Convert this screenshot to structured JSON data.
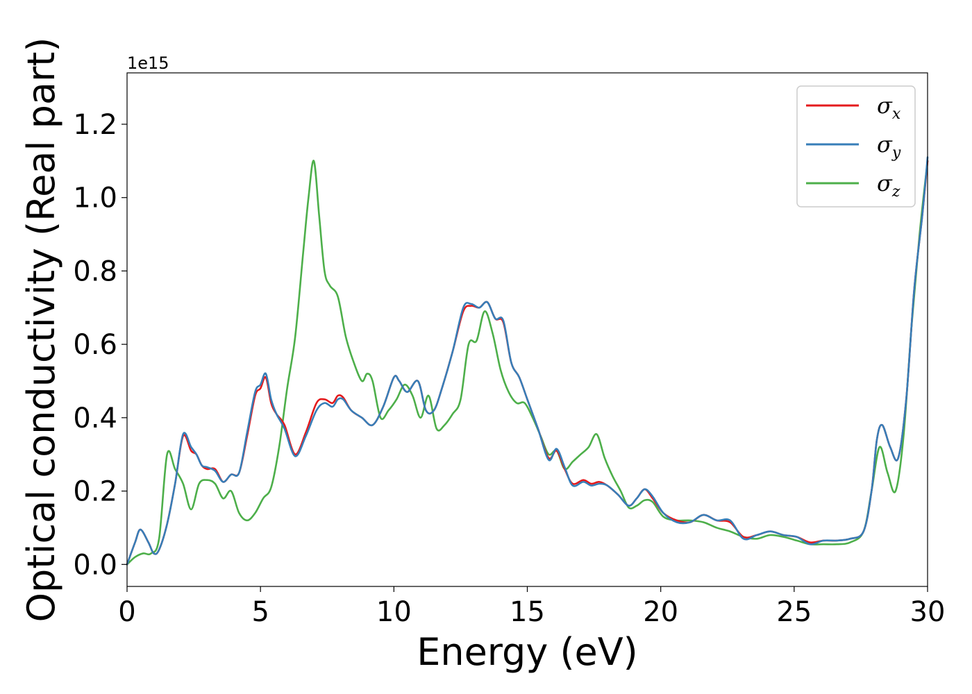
{
  "chart_data": {
    "type": "line",
    "title": "",
    "xlabel": "Energy (eV)",
    "ylabel": "Optical conductivity (Real part)",
    "y_offset_label": "1e15",
    "xlim": [
      0,
      30
    ],
    "ylim": [
      -0.06,
      1.34
    ],
    "y_scale_factor": 1000000000000000.0,
    "xticks": [
      0,
      5,
      10,
      15,
      20,
      25,
      30
    ],
    "yticks": [
      0.0,
      0.2,
      0.4,
      0.6,
      0.8,
      1.0,
      1.2
    ],
    "xtick_labels": [
      "0",
      "5",
      "10",
      "15",
      "20",
      "25",
      "30"
    ],
    "ytick_labels": [
      "0.0",
      "0.2",
      "0.4",
      "0.6",
      "0.8",
      "1.0",
      "1.2"
    ],
    "grid": false,
    "legend_position": "top-right",
    "series": [
      {
        "name": "σx",
        "name_base": "σ",
        "name_sub": "x",
        "color": "#e41a1c",
        "x": [
          0,
          0.3,
          0.5,
          0.8,
          1.0,
          1.2,
          1.5,
          1.8,
          2.1,
          2.4,
          2.6,
          2.8,
          3.0,
          3.3,
          3.6,
          3.9,
          4.2,
          4.5,
          4.8,
          5.0,
          5.2,
          5.4,
          5.6,
          5.9,
          6.3,
          6.7,
          7.1,
          7.4,
          7.7,
          7.9,
          8.1,
          8.4,
          8.8,
          9.2,
          9.6,
          10.0,
          10.2,
          10.5,
          10.9,
          11.2,
          11.5,
          11.8,
          12.2,
          12.6,
          12.9,
          13.2,
          13.5,
          13.8,
          14.1,
          14.4,
          14.7,
          15.0,
          15.4,
          15.8,
          16.1,
          16.4,
          16.7,
          17.1,
          17.4,
          17.7,
          18.0,
          18.4,
          18.8,
          19.1,
          19.4,
          19.7,
          20.1,
          20.6,
          21.1,
          21.6,
          22.1,
          22.6,
          23.1,
          23.6,
          24.1,
          24.6,
          25.1,
          25.6,
          26.1,
          26.6,
          27.1,
          27.6,
          27.9,
          28.1,
          28.3,
          28.6,
          28.9,
          29.2,
          29.5,
          29.8,
          30.0
        ],
        "values": [
          0,
          0.06,
          0.095,
          0.06,
          0.03,
          0.04,
          0.11,
          0.22,
          0.35,
          0.31,
          0.3,
          0.27,
          0.26,
          0.26,
          0.225,
          0.245,
          0.25,
          0.35,
          0.46,
          0.48,
          0.51,
          0.44,
          0.41,
          0.38,
          0.3,
          0.36,
          0.44,
          0.45,
          0.44,
          0.46,
          0.455,
          0.42,
          0.4,
          0.38,
          0.43,
          0.51,
          0.5,
          0.47,
          0.5,
          0.42,
          0.42,
          0.48,
          0.58,
          0.69,
          0.705,
          0.7,
          0.715,
          0.67,
          0.66,
          0.55,
          0.51,
          0.45,
          0.37,
          0.29,
          0.31,
          0.26,
          0.22,
          0.23,
          0.22,
          0.225,
          0.215,
          0.19,
          0.16,
          0.18,
          0.205,
          0.18,
          0.14,
          0.12,
          0.115,
          0.135,
          0.12,
          0.115,
          0.075,
          0.08,
          0.09,
          0.08,
          0.075,
          0.06,
          0.065,
          0.065,
          0.07,
          0.09,
          0.2,
          0.34,
          0.38,
          0.32,
          0.29,
          0.45,
          0.75,
          0.95,
          1.1
        ]
      },
      {
        "name": "σy",
        "name_base": "σ",
        "name_sub": "y",
        "color": "#377eb8",
        "x": [
          0,
          0.3,
          0.5,
          0.8,
          1.0,
          1.2,
          1.5,
          1.8,
          2.1,
          2.4,
          2.6,
          2.8,
          3.0,
          3.3,
          3.6,
          3.9,
          4.2,
          4.5,
          4.8,
          5.0,
          5.2,
          5.4,
          5.6,
          5.9,
          6.3,
          6.7,
          7.1,
          7.4,
          7.7,
          7.9,
          8.1,
          8.4,
          8.8,
          9.2,
          9.6,
          10.0,
          10.2,
          10.5,
          10.9,
          11.2,
          11.5,
          11.8,
          12.2,
          12.6,
          12.9,
          13.2,
          13.5,
          13.8,
          14.1,
          14.4,
          14.7,
          15.0,
          15.4,
          15.8,
          16.1,
          16.4,
          16.7,
          17.1,
          17.4,
          17.7,
          18.0,
          18.4,
          18.8,
          19.1,
          19.4,
          19.7,
          20.1,
          20.6,
          21.1,
          21.6,
          22.1,
          22.6,
          23.1,
          23.6,
          24.1,
          24.6,
          25.1,
          25.6,
          26.1,
          26.6,
          27.1,
          27.6,
          27.9,
          28.1,
          28.3,
          28.6,
          28.9,
          29.2,
          29.5,
          29.8,
          30.0
        ],
        "values": [
          0,
          0.06,
          0.095,
          0.06,
          0.03,
          0.04,
          0.11,
          0.22,
          0.355,
          0.32,
          0.3,
          0.27,
          0.265,
          0.255,
          0.225,
          0.245,
          0.25,
          0.36,
          0.47,
          0.49,
          0.52,
          0.45,
          0.41,
          0.37,
          0.295,
          0.35,
          0.42,
          0.44,
          0.43,
          0.45,
          0.45,
          0.42,
          0.4,
          0.38,
          0.43,
          0.51,
          0.5,
          0.47,
          0.5,
          0.42,
          0.42,
          0.48,
          0.58,
          0.7,
          0.71,
          0.7,
          0.715,
          0.67,
          0.665,
          0.55,
          0.51,
          0.45,
          0.37,
          0.285,
          0.315,
          0.265,
          0.215,
          0.225,
          0.215,
          0.22,
          0.215,
          0.19,
          0.16,
          0.18,
          0.205,
          0.185,
          0.14,
          0.115,
          0.115,
          0.135,
          0.12,
          0.12,
          0.07,
          0.08,
          0.09,
          0.08,
          0.075,
          0.055,
          0.065,
          0.065,
          0.07,
          0.09,
          0.2,
          0.34,
          0.38,
          0.32,
          0.29,
          0.45,
          0.75,
          0.95,
          1.11
        ]
      },
      {
        "name": "σz",
        "name_base": "σ",
        "name_sub": "z",
        "color": "#4daf4a",
        "x": [
          0,
          0.3,
          0.6,
          0.9,
          1.2,
          1.5,
          1.8,
          2.1,
          2.4,
          2.7,
          3.0,
          3.3,
          3.6,
          3.9,
          4.2,
          4.5,
          4.8,
          5.1,
          5.4,
          5.7,
          6.0,
          6.3,
          6.6,
          6.8,
          7.0,
          7.2,
          7.4,
          7.6,
          7.9,
          8.2,
          8.5,
          8.8,
          9.0,
          9.2,
          9.5,
          9.8,
          10.1,
          10.4,
          10.7,
          11.0,
          11.3,
          11.6,
          11.9,
          12.2,
          12.5,
          12.8,
          13.1,
          13.4,
          13.7,
          14.0,
          14.3,
          14.6,
          14.9,
          15.2,
          15.5,
          15.8,
          16.1,
          16.4,
          16.7,
          17.0,
          17.3,
          17.6,
          17.9,
          18.2,
          18.5,
          18.8,
          19.1,
          19.4,
          19.7,
          20.1,
          20.6,
          21.1,
          21.6,
          22.1,
          22.6,
          23.1,
          23.6,
          24.1,
          24.6,
          25.1,
          25.6,
          26.1,
          26.6,
          27.1,
          27.6,
          27.9,
          28.2,
          28.5,
          28.8,
          29.1,
          29.4,
          29.7,
          30.0
        ],
        "values": [
          0,
          0.02,
          0.03,
          0.03,
          0.07,
          0.3,
          0.26,
          0.22,
          0.15,
          0.22,
          0.23,
          0.22,
          0.18,
          0.2,
          0.14,
          0.12,
          0.14,
          0.18,
          0.21,
          0.32,
          0.48,
          0.62,
          0.85,
          1.0,
          1.1,
          0.95,
          0.8,
          0.76,
          0.73,
          0.62,
          0.55,
          0.5,
          0.52,
          0.5,
          0.4,
          0.42,
          0.45,
          0.49,
          0.46,
          0.4,
          0.46,
          0.37,
          0.38,
          0.41,
          0.45,
          0.6,
          0.61,
          0.69,
          0.63,
          0.53,
          0.47,
          0.44,
          0.44,
          0.4,
          0.35,
          0.3,
          0.31,
          0.26,
          0.28,
          0.3,
          0.32,
          0.355,
          0.29,
          0.24,
          0.2,
          0.155,
          0.16,
          0.175,
          0.17,
          0.13,
          0.12,
          0.12,
          0.115,
          0.1,
          0.09,
          0.075,
          0.07,
          0.08,
          0.075,
          0.065,
          0.055,
          0.055,
          0.055,
          0.06,
          0.09,
          0.2,
          0.32,
          0.25,
          0.2,
          0.35,
          0.65,
          0.9,
          1.1
        ]
      }
    ]
  }
}
